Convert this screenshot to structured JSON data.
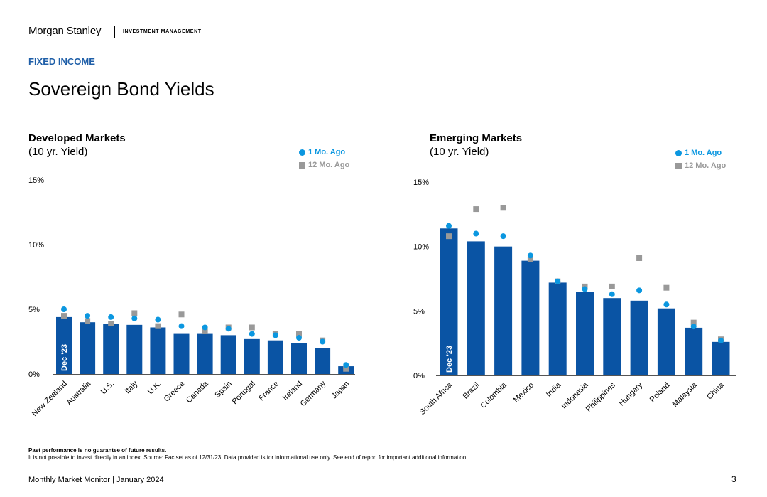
{
  "header": {
    "brand": "Morgan Stanley",
    "division": "INVESTMENT MANAGEMENT",
    "section": "FIXED INCOME",
    "title": "Sovereign Bond Yields"
  },
  "colors": {
    "bar": "#0a54a4",
    "dot": "#0b97e0",
    "square": "#999999",
    "section": "#1f5fa8"
  },
  "chart_data": [
    {
      "type": "bar",
      "title": "Developed Markets",
      "subtitle": "(10 yr. Yield)",
      "bar_label": "Dec '23",
      "ylim": [
        0,
        15
      ],
      "yticks": [
        "0%",
        "5%",
        "10%",
        "15%"
      ],
      "categories": [
        "New Zealand",
        "Australia",
        "U.S.",
        "Italy",
        "U.K.",
        "Greece",
        "Canada",
        "Spain",
        "Portugal",
        "France",
        "Ireland",
        "Germany",
        "Japan"
      ],
      "series": [
        {
          "name": "Dec '23",
          "kind": "bar",
          "values": [
            4.4,
            4.0,
            3.9,
            3.8,
            3.6,
            3.1,
            3.1,
            3.0,
            2.7,
            2.6,
            2.4,
            2.0,
            0.6
          ]
        },
        {
          "name": "1 Mo. Ago",
          "kind": "dot",
          "values": [
            5.0,
            4.5,
            4.4,
            4.3,
            4.2,
            3.7,
            3.6,
            3.5,
            3.1,
            3.0,
            2.8,
            2.5,
            0.7
          ]
        },
        {
          "name": "12 Mo. Ago",
          "kind": "square",
          "values": [
            4.5,
            4.1,
            3.9,
            4.7,
            3.7,
            4.6,
            3.3,
            3.6,
            3.6,
            3.1,
            3.1,
            2.6,
            0.4
          ]
        }
      ],
      "legend": [
        "1 Mo. Ago",
        "12 Mo. Ago"
      ]
    },
    {
      "type": "bar",
      "title": "Emerging Markets",
      "subtitle": "(10 yr. Yield)",
      "bar_label": "Dec '23",
      "ylim": [
        0,
        15
      ],
      "yticks": [
        "0%",
        "5%",
        "10%",
        "15%"
      ],
      "categories": [
        "South Africa",
        "Brazil",
        "Colombia",
        "Mexico",
        "India",
        "Indonesia",
        "Philippines",
        "Hungary",
        "Poland",
        "Malaysia",
        "China"
      ],
      "series": [
        {
          "name": "Dec '23",
          "kind": "bar",
          "values": [
            11.4,
            10.4,
            10.0,
            8.9,
            7.2,
            6.5,
            6.0,
            5.8,
            5.2,
            3.7,
            2.6
          ]
        },
        {
          "name": "1 Mo. Ago",
          "kind": "dot",
          "values": [
            11.6,
            11.0,
            10.8,
            9.3,
            7.3,
            6.7,
            6.3,
            6.6,
            5.5,
            3.8,
            2.7
          ]
        },
        {
          "name": "12 Mo. Ago",
          "kind": "square",
          "values": [
            10.8,
            12.9,
            13.0,
            9.0,
            7.3,
            6.9,
            6.9,
            9.1,
            6.8,
            4.1,
            2.8
          ]
        }
      ],
      "legend": [
        "1 Mo. Ago",
        "12 Mo. Ago"
      ]
    }
  ],
  "footnote": {
    "bold": "Past performance is no guarantee of future results.",
    "text": "It is not possible to invest directly in an index. Source: Factset as of 12/31/23. Data provided is for informational use only. See end of report for important additional information."
  },
  "footer": {
    "left": "Monthly Market Monitor | January 2024",
    "page": "3"
  }
}
